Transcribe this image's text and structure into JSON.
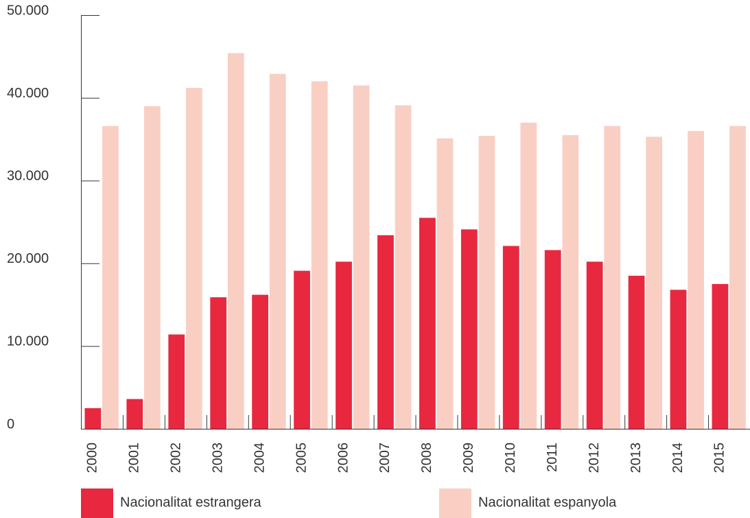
{
  "chart_data": {
    "type": "bar",
    "categories": [
      "2000",
      "2001",
      "2002",
      "2003",
      "2004",
      "2005",
      "2006",
      "2007",
      "2008",
      "2009",
      "2010",
      "2011",
      "2012",
      "2013",
      "2014",
      "2015"
    ],
    "series": [
      {
        "name": "Nacionalitat estrangera",
        "color": "#e8283f",
        "values": [
          2500,
          3600,
          11400,
          15900,
          16200,
          19100,
          20200,
          23400,
          25500,
          24100,
          22100,
          21600,
          20200,
          18500,
          16800,
          17500
        ]
      },
      {
        "name": "Nacionalitat espanyola",
        "color": "#f9cfc4",
        "values": [
          36600,
          39000,
          41200,
          45400,
          42900,
          42000,
          41500,
          39100,
          35100,
          35400,
          37000,
          35500,
          36600,
          35300,
          36000,
          36600
        ]
      }
    ],
    "ylim": [
      0,
      50000
    ],
    "yticks": [
      0,
      {
        "value": 10000,
        "label": "10.000"
      },
      {
        "value": 20000,
        "label": "20.000"
      },
      {
        "value": 30000,
        "label": "30.000"
      },
      {
        "value": 40000,
        "label": "40.000"
      },
      {
        "value": 50000,
        "label": "50.000"
      }
    ],
    "legend": "bottom"
  }
}
